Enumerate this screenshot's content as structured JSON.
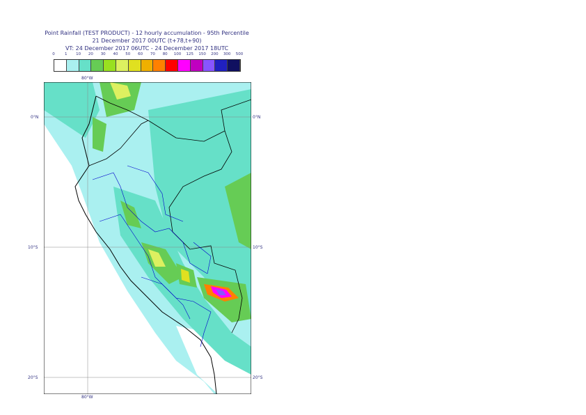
{
  "title": {
    "line1": "Point Rainfall (TEST PRODUCT) - 12 hourly accumulation - 95th Percentile",
    "line2": "21 December 2017 00UTC (t+78,t+90)",
    "line3": "VT: 24 December 2017 06UTC - 24 December 2017 18UTC"
  },
  "legend": {
    "thresholds": [
      "0",
      "1",
      "10",
      "20",
      "30",
      "40",
      "50",
      "60",
      "70",
      "80",
      "100",
      "125",
      "150",
      "200",
      "300",
      "500"
    ],
    "colors": [
      "#ffffff",
      "#aaf0f0",
      "#66e0c8",
      "#66cc55",
      "#99e020",
      "#ddf060",
      "#e0e020",
      "#f0b000",
      "#ff8000",
      "#ff0000",
      "#ff00ff",
      "#c000c0",
      "#8855ff",
      "#2020c0",
      "#101060"
    ]
  },
  "axes": {
    "lon_top": "80°W",
    "lon_bottom": "80°W",
    "lat_left": [
      "0°N",
      "10°S",
      "20°S"
    ],
    "lat_right": [
      "0°N",
      "10°S",
      "20°S"
    ]
  }
}
